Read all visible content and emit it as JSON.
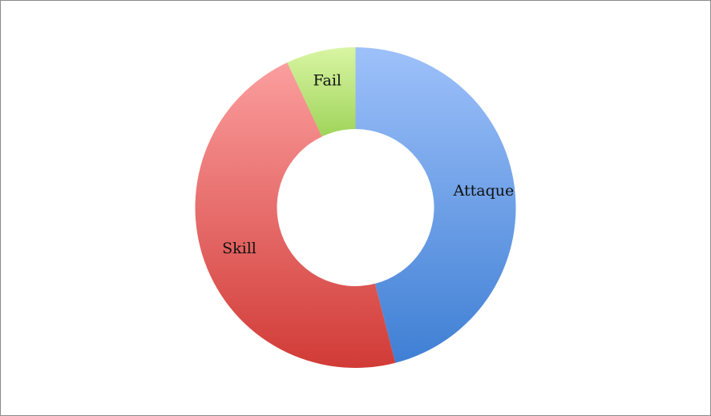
{
  "chart_data": {
    "type": "pie",
    "variant": "donut",
    "title": "",
    "categories": [
      "Attaque",
      "Skill",
      "Fail"
    ],
    "values": [
      46,
      47,
      7
    ],
    "unit": "percent",
    "start_angle_deg": 0,
    "direction": "clockwise",
    "legend": "none",
    "colors": {
      "Attaque": [
        "#9ec1fa",
        "#3f7fd4"
      ],
      "Skill": [
        "#fb9e9e",
        "#d13b37"
      ],
      "Fail": [
        "#d9f5a3",
        "#9fd45a"
      ]
    }
  }
}
